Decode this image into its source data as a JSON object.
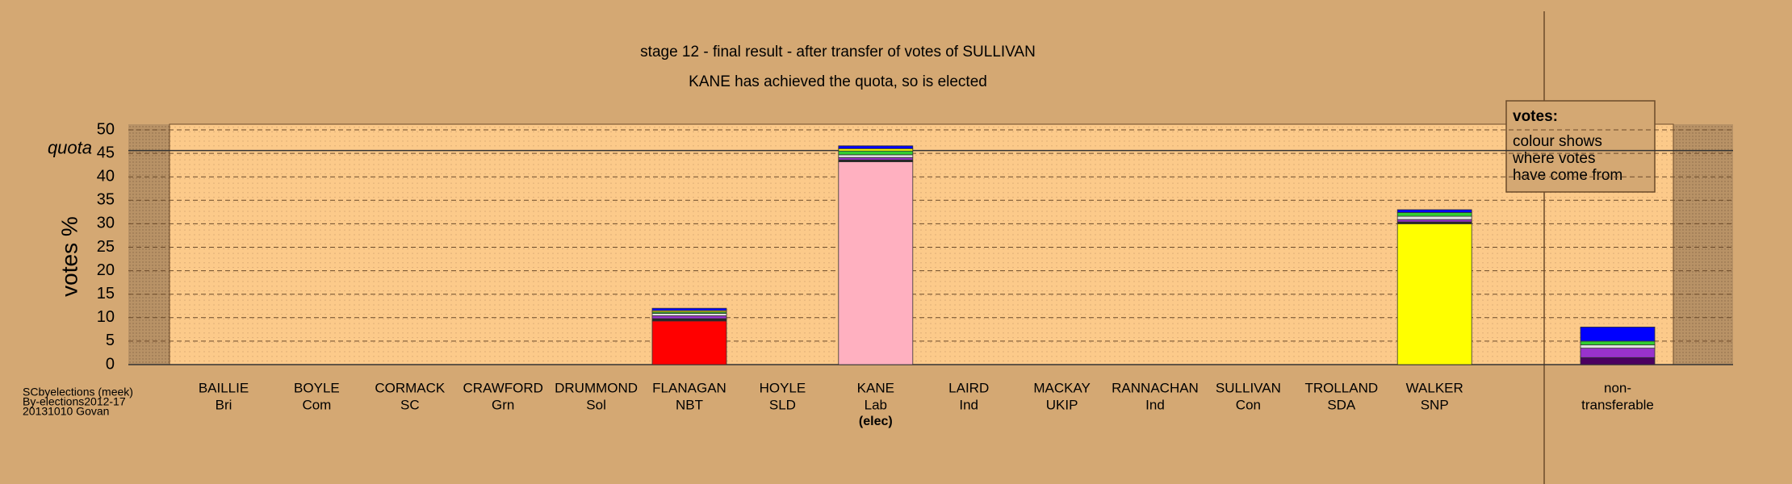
{
  "chart_data": {
    "type": "stacked-bar",
    "title": "stage 12 - final result - after transfer of votes of SULLIVAN",
    "subtitle": "KANE has achieved the quota, so is elected",
    "y_label": "votes %",
    "categories": [
      "BAILLIE",
      "BOYLE",
      "CORMACK",
      "CRAWFORD",
      "DRUMMOND",
      "FLANAGAN",
      "HOYLE",
      "KANE",
      "LAIRD",
      "MACKAY",
      "RANNACHAN",
      "SULLIVAN",
      "TROLLAND",
      "WALKER",
      "non-"
    ],
    "category_sublabels": [
      "Bri",
      "Com",
      "SC",
      "Grn",
      "Sol",
      "NBT",
      "SLD",
      "Lab",
      "Ind",
      "UKIP",
      "Ind",
      "Con",
      "SDA",
      "SNP",
      "transferable"
    ],
    "category_notes": [
      null,
      null,
      null,
      null,
      null,
      null,
      null,
      "(elec)",
      null,
      null,
      null,
      null,
      null,
      null,
      null
    ],
    "series": [
      {
        "colors": [
          null,
          null,
          null,
          null,
          null,
          "#ff0000",
          null,
          "#ffb0c0",
          null,
          null,
          null,
          null,
          null,
          "#ffff00",
          "#4b0060"
        ],
        "values": [
          0,
          0,
          0,
          0,
          0,
          9.3,
          0,
          43.2,
          0,
          0,
          0,
          0,
          0,
          30,
          1.5
        ]
      },
      {
        "color": "#222222",
        "values": [
          0,
          0,
          0,
          0,
          0,
          0.5,
          0,
          0.4,
          0,
          0,
          0,
          0,
          0,
          0.4,
          0
        ]
      },
      {
        "color": "#9932cc",
        "values": [
          0,
          0,
          0,
          0,
          0,
          0.6,
          0,
          0.5,
          0,
          0,
          0,
          0,
          0,
          0.5,
          2.0
        ]
      },
      {
        "color": "#e0e0e0",
        "values": [
          0,
          0,
          0,
          0,
          0,
          0.5,
          0,
          0.6,
          0,
          0,
          0,
          0,
          0,
          0.7,
          0.7
        ]
      },
      {
        "color": "#32cd32",
        "values": [
          0,
          0,
          0,
          0,
          0,
          0.3,
          0,
          0.8,
          0,
          0,
          0,
          0,
          0,
          0.8,
          0.8
        ]
      },
      {
        "color": "#ffff00",
        "values": [
          0,
          0,
          0,
          0,
          0,
          0.3,
          0,
          0.5,
          0,
          0,
          0,
          0,
          0,
          0,
          0
        ]
      },
      {
        "color": "#0000ff",
        "values": [
          0,
          0,
          0,
          0,
          0,
          0.5,
          0,
          0.6,
          0,
          0,
          0,
          0,
          0,
          0.6,
          3.0
        ]
      }
    ],
    "ylim": [
      0,
      51
    ],
    "yticks": [
      0,
      5,
      10,
      15,
      20,
      25,
      30,
      35,
      40,
      45,
      50
    ],
    "grid": true,
    "quota": {
      "value": 45.6,
      "label": "quota"
    },
    "legend": {
      "title": "votes:",
      "lines": [
        "colour shows",
        "where votes",
        "have come from"
      ]
    },
    "footer": [
      "SCbyelections (meek)",
      "By-elections2012-17",
      "20131010 Govan"
    ]
  }
}
